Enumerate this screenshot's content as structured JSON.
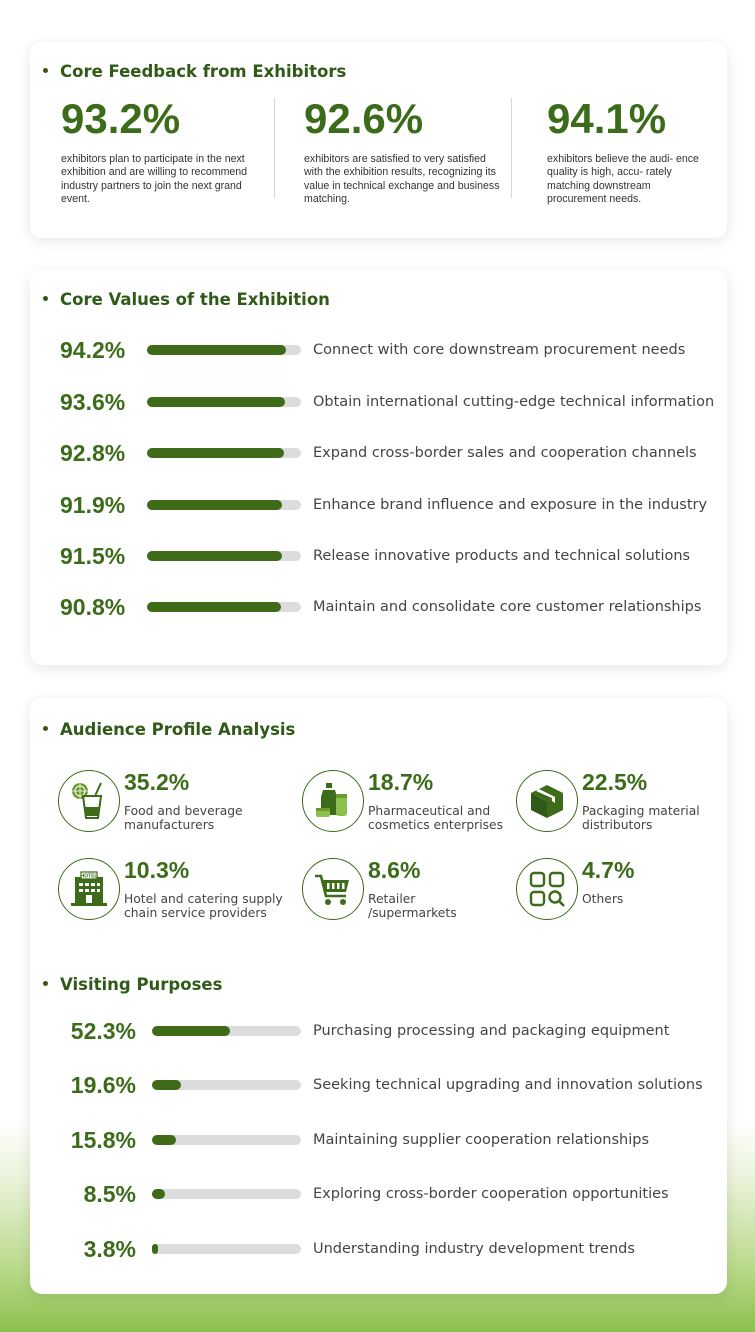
{
  "core_feedback": {
    "title": "Core Feedback from Exhibitors",
    "items": [
      {
        "value": "93.2%",
        "description": "exhibitors plan to participate in the next exhibition and are willing to recommend industry partners to join the next grand event."
      },
      {
        "value": "92.6%",
        "description": "exhibitors are satisfied to very satisfied with the exhibition results, recognizing its value in technical exchange and business matching."
      },
      {
        "value": "94.1%",
        "description": "exhibitors believe the audi- ence quality is high, accu- rately matching downstream procurement needs."
      }
    ]
  },
  "core_values": {
    "title": "Core Values of the Exhibition",
    "items": [
      {
        "value": "94.2%",
        "percent": 94.2,
        "label": "Connect with core downstream procurement needs"
      },
      {
        "value": "93.6%",
        "percent": 93.6,
        "label": "Obtain international cutting-edge technical information"
      },
      {
        "value": "92.8%",
        "percent": 92.8,
        "label": "Expand cross-border sales and cooperation channels"
      },
      {
        "value": "91.9%",
        "percent": 91.9,
        "label": "Enhance brand influence and exposure in the industry"
      },
      {
        "value": "91.5%",
        "percent": 91.5,
        "label": "Release innovative products and technical solutions"
      },
      {
        "value": "90.8%",
        "percent": 90.8,
        "label": "Maintain and consolidate core customer relationships"
      }
    ]
  },
  "audience_profile": {
    "title": "Audience Profile Analysis",
    "items": [
      {
        "value": "35.2%",
        "label": "Food and beverage\nmanufacturers",
        "icon": "drink-icon"
      },
      {
        "value": "18.7%",
        "label": "Pharmaceutical  and\ncosmetics enterprises",
        "icon": "cosmetics-icon"
      },
      {
        "value": "22.5%",
        "label": "Packaging material\ndistributors",
        "icon": "box-icon"
      },
      {
        "value": "10.3%",
        "label": "Hotel and catering  supply\nchain service providers",
        "icon": "hotel-icon",
        "icon_text": "HOTEL"
      },
      {
        "value": "8.6%",
        "label": "Retailer\n/supermarkets",
        "icon": "cart-icon"
      },
      {
        "value": "4.7%",
        "label": "Others",
        "icon": "grid-search-icon"
      }
    ]
  },
  "visiting_purposes": {
    "title": "Visiting Purposes",
    "items": [
      {
        "value": "52.3%",
        "percent": 52.3,
        "label": "Purchasing processing and packaging equipment"
      },
      {
        "value": "19.6%",
        "percent": 19.6,
        "label": "Seeking technical upgrading and innovation solutions"
      },
      {
        "value": "15.8%",
        "percent": 15.8,
        "label": "Maintaining supplier cooperation relationships"
      },
      {
        "value": "8.5%",
        "percent": 8.5,
        "label": "Exploring cross-border cooperation opportunities"
      },
      {
        "value": "3.8%",
        "percent": 3.8,
        "label": "Understanding industry development trends"
      }
    ]
  },
  "colors": {
    "accent": "#3c6c1a",
    "bar_fill": "#3f6b19",
    "bar_track": "#dcdcdc"
  }
}
